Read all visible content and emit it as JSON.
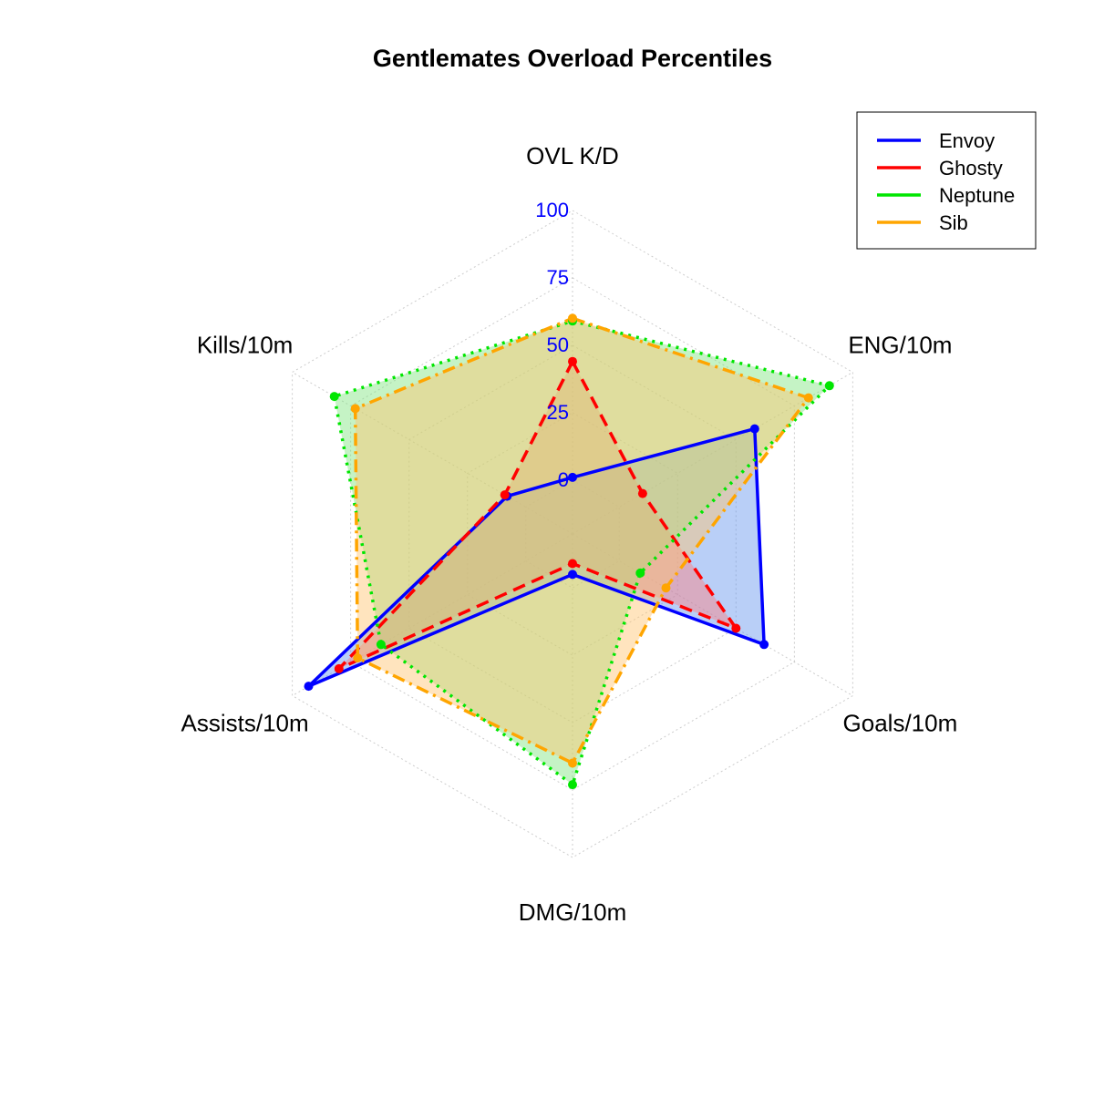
{
  "chart_data": {
    "type": "radar",
    "title": "Gentlemates Overload Percentiles",
    "axes": [
      "OVL K/D",
      "ENG/10m",
      "Goals/10m",
      "DMG/10m",
      "Assists/10m",
      "Kills/10m"
    ],
    "rlim": [
      -20,
      100
    ],
    "ticks": [
      "0",
      "25",
      "50",
      "75",
      "100"
    ],
    "tick_values": [
      0,
      25,
      50,
      75,
      100
    ],
    "tick_color": "#0000ff",
    "grid": true,
    "legend_position": "top-right",
    "series": [
      {
        "name": "Envoy",
        "color": "#0000ff",
        "fill": "#6495ed",
        "dash": "solid",
        "values": [
          1,
          58,
          62,
          -5,
          93,
          8
        ]
      },
      {
        "name": "Ghosty",
        "color": "#ff0000",
        "fill": "#ff7f7f",
        "dash": "dashed",
        "values": [
          44,
          10,
          50,
          -9,
          80,
          9
        ]
      },
      {
        "name": "Neptune",
        "color": "#00e600",
        "fill": "#7fe57f",
        "dash": "dotted",
        "values": [
          59,
          90,
          9,
          73,
          62,
          82
        ]
      },
      {
        "name": "Sib",
        "color": "#ffa500",
        "fill": "#ffc36e",
        "dash": "dashdot",
        "values": [
          60,
          81,
          20,
          65,
          72,
          73
        ]
      }
    ]
  }
}
